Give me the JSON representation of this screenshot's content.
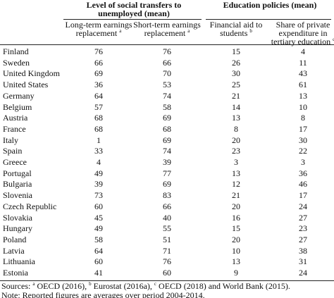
{
  "table": {
    "group_headers": [
      "Level of social transfers to unemployed (mean)",
      "Education policies (mean)"
    ],
    "columns": [
      {
        "text": "Long-term earnings replacement",
        "note": "a"
      },
      {
        "text": "Short-term earnings replacement",
        "note": "a"
      },
      {
        "text": "Financial aid to students",
        "note": "b"
      },
      {
        "text": "Share of private expenditure in tertiary education",
        "note": "c"
      }
    ],
    "rows": [
      [
        "Finland",
        76,
        76,
        15,
        4
      ],
      [
        "Sweden",
        66,
        66,
        26,
        11
      ],
      [
        "United Kingdom",
        69,
        70,
        30,
        43
      ],
      [
        "United States",
        36,
        53,
        25,
        61
      ],
      [
        "Germany",
        64,
        74,
        21,
        13
      ],
      [
        "Belgium",
        57,
        58,
        14,
        10
      ],
      [
        "Austria",
        68,
        69,
        13,
        8
      ],
      [
        "France",
        68,
        68,
        8,
        17
      ],
      [
        "Italy",
        1,
        69,
        20,
        30
      ],
      [
        "Spain",
        33,
        74,
        23,
        22
      ],
      [
        "Greece",
        4,
        39,
        3,
        3
      ],
      [
        "Portugal",
        49,
        77,
        13,
        36
      ],
      [
        "Bulgaria",
        39,
        69,
        12,
        46
      ],
      [
        "Slovenia",
        73,
        83,
        21,
        17
      ],
      [
        "Czech Republic",
        60,
        66,
        20,
        24
      ],
      [
        "Slovakia",
        45,
        40,
        16,
        27
      ],
      [
        "Hungary",
        49,
        55,
        15,
        23
      ],
      [
        "Poland",
        58,
        51,
        20,
        27
      ],
      [
        "Latvia",
        64,
        71,
        10,
        38
      ],
      [
        "Lithuania",
        60,
        76,
        13,
        31
      ],
      [
        "Estonia",
        41,
        60,
        9,
        24
      ]
    ]
  },
  "footnotes": {
    "sources": {
      "label": "Sources:",
      "items": [
        {
          "note": "a",
          "text": "OECD (2016),"
        },
        {
          "note": "b",
          "text": "Eurostat (2016a),"
        },
        {
          "note": "c",
          "text": "OECD (2018) and World Bank (2015)."
        }
      ]
    },
    "note": "Note: Reported figures are averages over period 2004-2014."
  }
}
